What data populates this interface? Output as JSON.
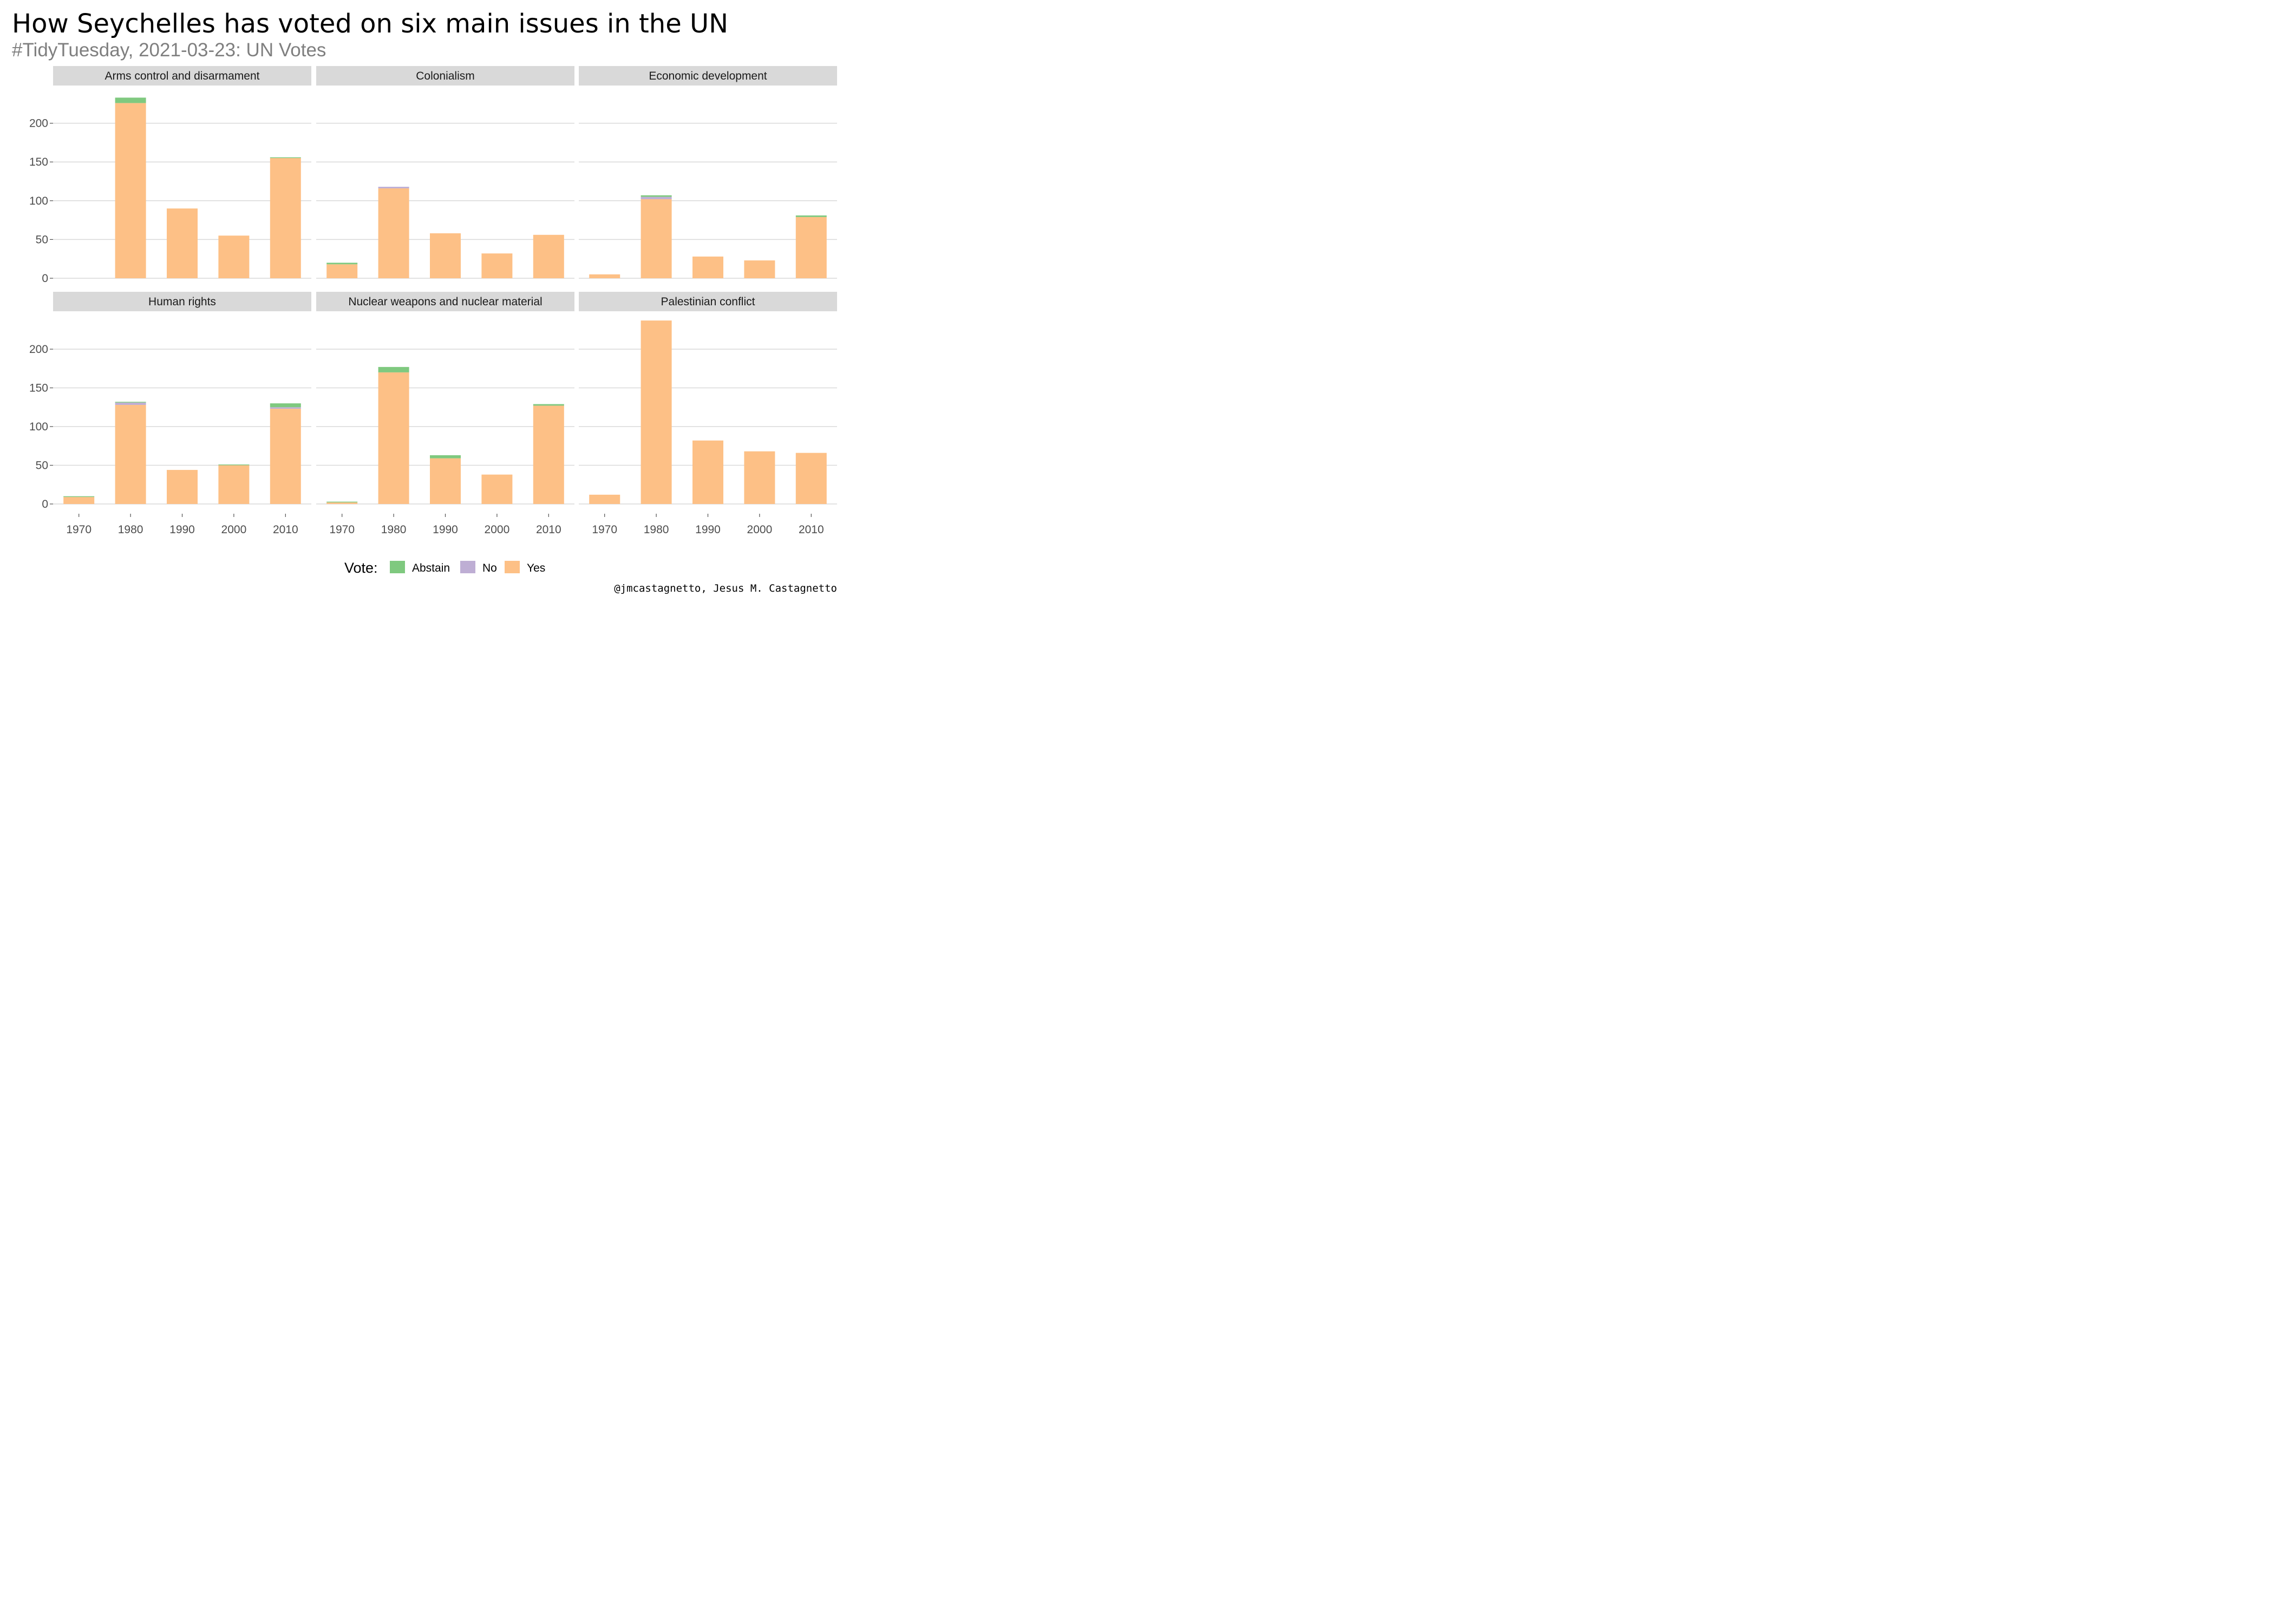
{
  "title": "How Seychelles has voted on six main issues in the UN",
  "subtitle": "#TidyTuesday, 2021-03-23: UN Votes",
  "caption": "@jmcastagnetto, Jesus M. Castagnetto",
  "legend": {
    "title": "Vote:",
    "items": [
      {
        "label": "Abstain",
        "color": "#7fc97f"
      },
      {
        "label": "No",
        "color": "#beaed4"
      },
      {
        "label": "Yes",
        "color": "#fdc086"
      }
    ]
  },
  "chart_data": {
    "type": "bar",
    "stacked": true,
    "grid": true,
    "categories": [
      "1970",
      "1980",
      "1990",
      "2000",
      "2010"
    ],
    "y_ticks": [
      0,
      50,
      100,
      150,
      200
    ],
    "ylim": [
      0,
      240
    ],
    "series_order": [
      "Yes",
      "No",
      "Abstain"
    ],
    "colors": {
      "Yes": "#fdc086",
      "No": "#beaed4",
      "Abstain": "#7fc97f"
    },
    "facets": [
      {
        "name": "Arms control and disarmament",
        "series": [
          {
            "name": "Yes",
            "values": [
              0,
              226,
              90,
              55,
              155
            ]
          },
          {
            "name": "No",
            "values": [
              0,
              0,
              0,
              0,
              0
            ]
          },
          {
            "name": "Abstain",
            "values": [
              0,
              7,
              0,
              0,
              1
            ]
          }
        ]
      },
      {
        "name": "Colonialism",
        "series": [
          {
            "name": "Yes",
            "values": [
              18,
              116,
              58,
              32,
              56
            ]
          },
          {
            "name": "No",
            "values": [
              0,
              2,
              0,
              0,
              0
            ]
          },
          {
            "name": "Abstain",
            "values": [
              2,
              0,
              0,
              0,
              0
            ]
          }
        ]
      },
      {
        "name": "Economic development",
        "series": [
          {
            "name": "Yes",
            "values": [
              5,
              102,
              28,
              23,
              79
            ]
          },
          {
            "name": "No",
            "values": [
              0,
              3,
              0,
              0,
              0
            ]
          },
          {
            "name": "Abstain",
            "values": [
              0,
              2,
              0,
              0,
              2
            ]
          }
        ]
      },
      {
        "name": "Human rights",
        "series": [
          {
            "name": "Yes",
            "values": [
              9,
              128,
              44,
              50,
              123
            ]
          },
          {
            "name": "No",
            "values": [
              0,
              3,
              0,
              0,
              2
            ]
          },
          {
            "name": "Abstain",
            "values": [
              1,
              1,
              0,
              1,
              5
            ]
          }
        ]
      },
      {
        "name": "Nuclear weapons and nuclear material",
        "series": [
          {
            "name": "Yes",
            "values": [
              2,
              170,
              59,
              38,
              127
            ]
          },
          {
            "name": "No",
            "values": [
              0,
              0,
              0,
              0,
              0
            ]
          },
          {
            "name": "Abstain",
            "values": [
              1,
              7,
              4,
              0,
              2
            ]
          }
        ]
      },
      {
        "name": "Palestinian conflict",
        "series": [
          {
            "name": "Yes",
            "values": [
              12,
              237,
              82,
              68,
              66
            ]
          },
          {
            "name": "No",
            "values": [
              0,
              0,
              0,
              0,
              0
            ]
          },
          {
            "name": "Abstain",
            "values": [
              0,
              0,
              0,
              0,
              0
            ]
          }
        ]
      }
    ]
  }
}
